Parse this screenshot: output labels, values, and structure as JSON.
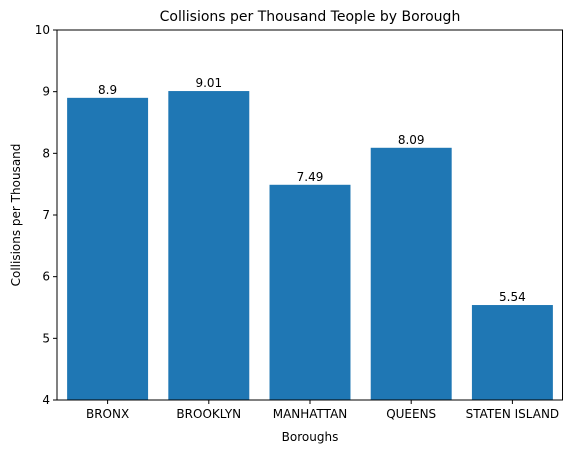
{
  "chart_data": {
    "type": "bar",
    "title": "Collisions per Thousand Teople by Borough",
    "xlabel": "Boroughs",
    "ylabel": "Collisions per Thousand",
    "categories": [
      "BRONX",
      "BROOKLYN",
      "MANHATTAN",
      "QUEENS",
      "STATEN ISLAND"
    ],
    "values": [
      8.9,
      9.01,
      7.49,
      8.09,
      5.54
    ],
    "value_labels": [
      "8.9",
      "9.01",
      "7.49",
      "8.09",
      "5.54"
    ],
    "ylim": [
      4,
      10
    ],
    "yticks": [
      4,
      5,
      6,
      7,
      8,
      9,
      10
    ],
    "grid": false,
    "legend": "none",
    "colors": {
      "bar": "#1f77b4",
      "axis": "#000000",
      "background": "#ffffff"
    }
  }
}
